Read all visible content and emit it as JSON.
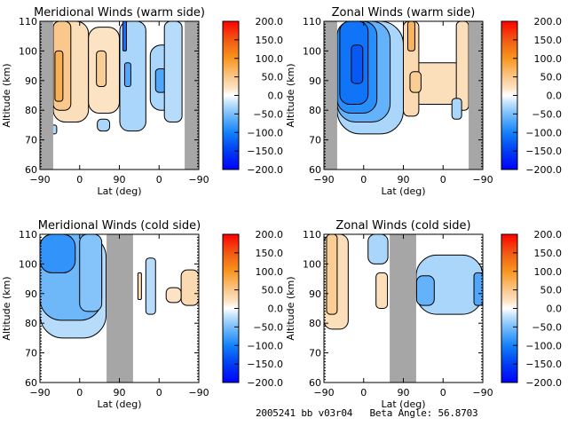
{
  "footer": {
    "text": "2005241 bb v03r04   Beta Angle: 56.8703"
  },
  "chart_data": [
    {
      "type": "heatmap",
      "id": "mer-warm",
      "title": "Meridional Winds (warm side)",
      "xlabel": "Lat (deg)",
      "ylabel": "Altitude (km)",
      "x_tick_labels": [
        "-90",
        "0",
        "90",
        "0",
        "-90"
      ],
      "x_track_range": [
        0,
        360
      ],
      "ylim": [
        60,
        110
      ],
      "y_ticks": [
        60,
        70,
        80,
        90,
        100,
        110
      ],
      "colorbar": {
        "range": [
          -200,
          200
        ],
        "ticks": [
          "200.0",
          "150.0",
          "100.0",
          "50.0",
          "0.0",
          "-50.0",
          "-100.0",
          "-150.0",
          "-200.0"
        ]
      },
      "no_data_track_ranges": [
        [
          0,
          30
        ],
        [
          328,
          360
        ]
      ],
      "regions": [
        {
          "x": [
            30,
            110
          ],
          "y": [
            76,
            110
          ],
          "value": 25
        },
        {
          "x": [
            30,
            70
          ],
          "y": [
            80,
            110
          ],
          "value": 50
        },
        {
          "x": [
            34,
            52
          ],
          "y": [
            83,
            100
          ],
          "value": 75
        },
        {
          "x": [
            110,
            180
          ],
          "y": [
            79,
            108
          ],
          "value": 20
        },
        {
          "x": [
            128,
            150
          ],
          "y": [
            88,
            100
          ],
          "value": 45
        },
        {
          "x": [
            181,
            240
          ],
          "y": [
            73,
            110
          ],
          "value": -30
        },
        {
          "x": [
            192,
            206
          ],
          "y": [
            88,
            96
          ],
          "value": -70
        },
        {
          "x": [
            188,
            196
          ],
          "y": [
            100,
            110
          ],
          "value": -110
        },
        {
          "x": [
            250,
            320
          ],
          "y": [
            80,
            102
          ],
          "value": -30
        },
        {
          "x": [
            262,
            286
          ],
          "y": [
            86,
            94
          ],
          "value": -70
        },
        {
          "x": [
            282,
            322
          ],
          "y": [
            76,
            110
          ],
          "value": -25
        },
        {
          "x": [
            130,
            158
          ],
          "y": [
            73,
            77
          ],
          "value": -30
        },
        {
          "x": [
            24,
            38
          ],
          "y": [
            72,
            75
          ],
          "value": -30
        }
      ]
    },
    {
      "type": "heatmap",
      "id": "zon-warm",
      "title": "Zonal Winds (warm side)",
      "xlabel": "Lat (deg)",
      "ylabel": "Altitude (km)",
      "x_tick_labels": [
        "-90",
        "0",
        "90",
        "0",
        "-90"
      ],
      "x_track_range": [
        0,
        360
      ],
      "ylim": [
        60,
        110
      ],
      "y_ticks": [
        60,
        70,
        80,
        90,
        100,
        110
      ],
      "colorbar": {
        "range": [
          -200,
          200
        ],
        "ticks": [
          "200.0",
          "150.0",
          "100.0",
          "50.0",
          "0.0",
          "-50.0",
          "-100.0",
          "-150.0",
          "-200.0"
        ]
      },
      "no_data_track_ranges": [
        [
          0,
          30
        ],
        [
          328,
          360
        ]
      ],
      "regions": [
        {
          "x": [
            30,
            180
          ],
          "y": [
            72,
            110
          ],
          "value": -30
        },
        {
          "x": [
            30,
            150
          ],
          "y": [
            76,
            110
          ],
          "value": -60
        },
        {
          "x": [
            30,
            120
          ],
          "y": [
            79,
            110
          ],
          "value": -90
        },
        {
          "x": [
            36,
            100
          ],
          "y": [
            82,
            110
          ],
          "value": -110
        },
        {
          "x": [
            62,
            88
          ],
          "y": [
            89,
            102
          ],
          "value": -130
        },
        {
          "x": [
            180,
            328
          ],
          "y": [
            82,
            96
          ],
          "value": 25
        },
        {
          "x": [
            180,
            215
          ],
          "y": [
            78,
            110
          ],
          "value": 30
        },
        {
          "x": [
            300,
            328
          ],
          "y": [
            80,
            110
          ],
          "value": 25
        },
        {
          "x": [
            190,
            206
          ],
          "y": [
            100,
            110
          ],
          "value": 70
        },
        {
          "x": [
            195,
            220
          ],
          "y": [
            86,
            93
          ],
          "value": 45
        },
        {
          "x": [
            290,
            312
          ],
          "y": [
            77,
            84
          ],
          "value": -30
        }
      ]
    },
    {
      "type": "heatmap",
      "id": "mer-cold",
      "title": "Meridional Winds (cold side)",
      "xlabel": "Lat (deg)",
      "ylabel": "Altitude (km)",
      "x_tick_labels": [
        "-90",
        "0",
        "90",
        "0",
        "-90"
      ],
      "x_track_range": [
        0,
        360
      ],
      "ylim": [
        60,
        110
      ],
      "y_ticks": [
        60,
        70,
        80,
        90,
        100,
        110
      ],
      "colorbar": {
        "range": [
          -200,
          200
        ],
        "ticks": [
          "200.0",
          "150.0",
          "100.0",
          "50.0",
          "0.0",
          "-50.0",
          "-100.0",
          "-150.0",
          "-200.0"
        ]
      },
      "no_data_track_ranges": [
        [
          151,
          211
        ]
      ],
      "regions": [
        {
          "x": [
            0,
            150
          ],
          "y": [
            75,
            110
          ],
          "value": -25
        },
        {
          "x": [
            0,
            140
          ],
          "y": [
            81,
            110
          ],
          "value": -55
        },
        {
          "x": [
            0,
            80
          ],
          "y": [
            97,
            110
          ],
          "value": -85
        },
        {
          "x": [
            90,
            140
          ],
          "y": [
            84,
            110
          ],
          "value": -45
        },
        {
          "x": [
            240,
            262
          ],
          "y": [
            83,
            102
          ],
          "value": -25
        },
        {
          "x": [
            320,
            360
          ],
          "y": [
            86,
            98
          ],
          "value": 30
        },
        {
          "x": [
            286,
            320
          ],
          "y": [
            87,
            92
          ],
          "value": 20
        },
        {
          "x": [
            222,
            230
          ],
          "y": [
            88,
            97
          ],
          "value": 30
        }
      ]
    },
    {
      "type": "heatmap",
      "id": "zon-cold",
      "title": "Zonal Winds (cold side)",
      "xlabel": "Lat (deg)",
      "ylabel": "Altitude (km)",
      "x_tick_labels": [
        "-90",
        "0",
        "90",
        "0",
        "-90"
      ],
      "x_track_range": [
        0,
        360
      ],
      "ylim": [
        60,
        110
      ],
      "y_ticks": [
        60,
        70,
        80,
        90,
        100,
        110
      ],
      "colorbar": {
        "range": [
          -200,
          200
        ],
        "ticks": [
          "200.0",
          "150.0",
          "100.0",
          "50.0",
          "0.0",
          "-50.0",
          "-100.0",
          "-150.0",
          "-200.0"
        ]
      },
      "no_data_track_ranges": [
        [
          149,
          209
        ]
      ],
      "regions": [
        {
          "x": [
            0,
            55
          ],
          "y": [
            78,
            110
          ],
          "value": 25
        },
        {
          "x": [
            6,
            30
          ],
          "y": [
            83,
            110
          ],
          "value": 45
        },
        {
          "x": [
            118,
            144
          ],
          "y": [
            85,
            97
          ],
          "value": 25
        },
        {
          "x": [
            100,
            145
          ],
          "y": [
            100,
            110
          ],
          "value": -30
        },
        {
          "x": [
            209,
            360
          ],
          "y": [
            83,
            103
          ],
          "value": -30
        },
        {
          "x": [
            210,
            250
          ],
          "y": [
            86,
            96
          ],
          "value": -60
        },
        {
          "x": [
            340,
            360
          ],
          "y": [
            86,
            97
          ],
          "value": -70
        }
      ]
    }
  ]
}
